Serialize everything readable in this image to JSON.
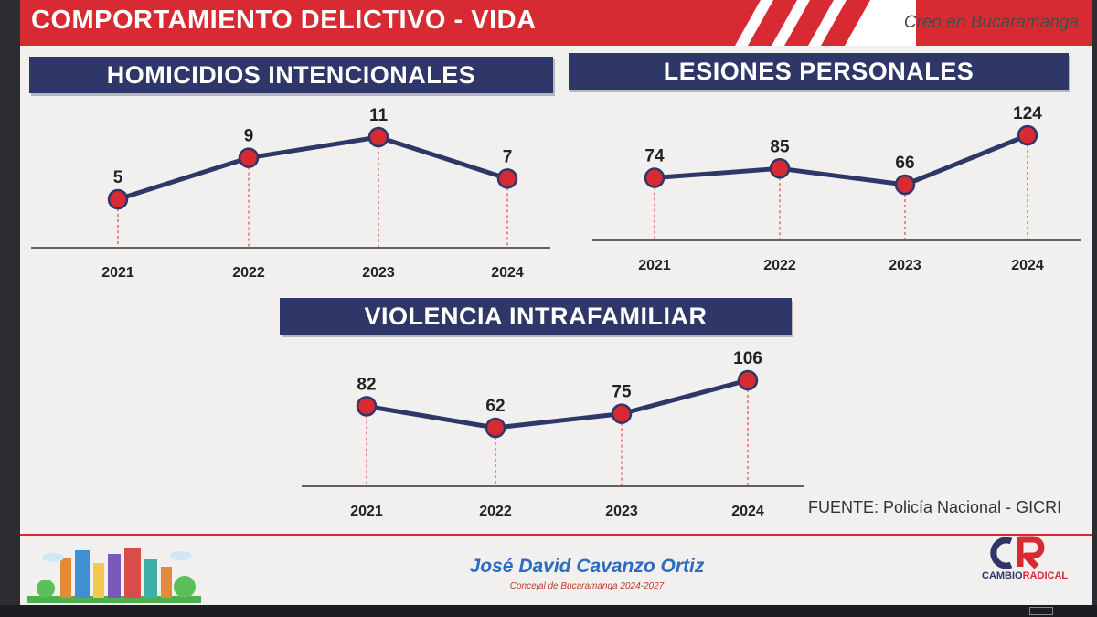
{
  "header": {
    "title": "COMPORTAMIENTO DELICTIVO - VIDA",
    "tagline": "Creo en Bucaramanga"
  },
  "colors": {
    "header_red": "#d72a32",
    "title_navy": "#2e3768",
    "line": "#2e3768",
    "marker": "#d72a32"
  },
  "chart_data": [
    {
      "type": "line",
      "title": "HOMICIDIOS INTENCIONALES",
      "categories": [
        "2021",
        "2022",
        "2023",
        "2024"
      ],
      "values": [
        5,
        9,
        11,
        7
      ],
      "data_labels": true,
      "grid": false
    },
    {
      "type": "line",
      "title": "LESIONES PERSONALES",
      "categories": [
        "2021",
        "2022",
        "2023",
        "2024"
      ],
      "values": [
        74,
        85,
        66,
        124
      ],
      "data_labels": true,
      "grid": false
    },
    {
      "type": "line",
      "title": "VIOLENCIA INTRAFAMILIAR",
      "categories": [
        "2021",
        "2022",
        "2023",
        "2024"
      ],
      "values": [
        82,
        62,
        75,
        106
      ],
      "data_labels": true,
      "grid": false
    }
  ],
  "source": "FUENTE: Policía Nacional - GICRI",
  "footer": {
    "name": "José David Cavanzo Ortiz",
    "role": "Concejal de Bucaramanga 2024-2027",
    "party_logo_icon": "cambio-radical-logo-icon",
    "party_name_part1": "CAMBIO",
    "party_name_part2": "RADICAL",
    "illustration_icon": "city-skyline-icon"
  }
}
